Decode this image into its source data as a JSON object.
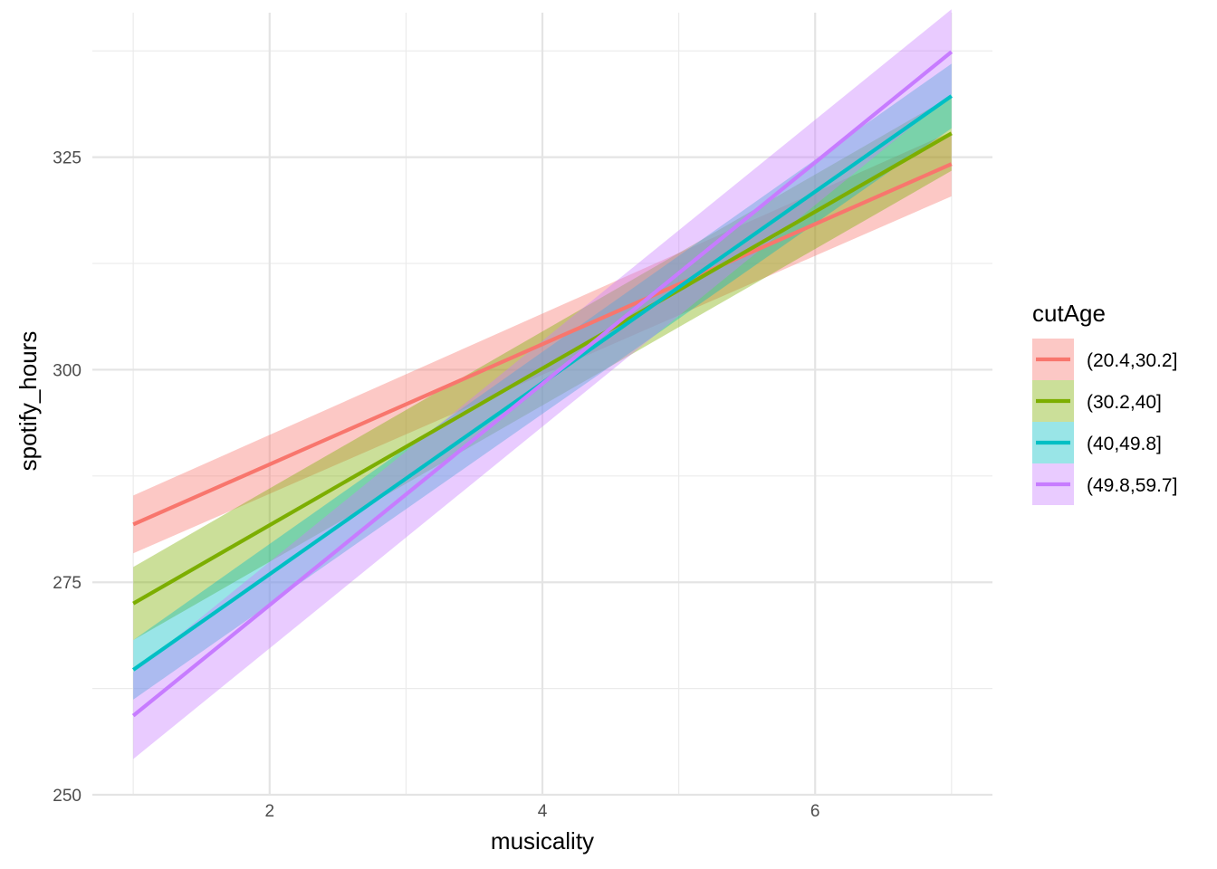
{
  "chart_data": {
    "type": "line",
    "xlabel": "musicality",
    "ylabel": "spotify_hours",
    "xlim": [
      0.7,
      7.3
    ],
    "ylim": [
      250,
      342
    ],
    "x_ticks": [
      2,
      4,
      6
    ],
    "x_minor": [
      1,
      3,
      5,
      7
    ],
    "y_ticks": [
      250,
      275,
      300,
      325
    ],
    "y_minor": [
      262.5,
      287.5,
      312.5,
      337.5
    ],
    "grid": true,
    "legend": {
      "title": "cutAge",
      "position": "right"
    },
    "series": [
      {
        "name": "(20.4,30.2]",
        "color": "#F8766D",
        "x": [
          1,
          7
        ],
        "y": [
          281.8,
          324.2
        ],
        "lower": [
          278.4,
          320.4
        ],
        "upper": [
          285.2,
          328.0
        ]
      },
      {
        "name": "(30.2,40]",
        "color": "#7CAE00",
        "x": [
          1,
          7
        ],
        "y": [
          272.5,
          327.8
        ],
        "lower": [
          268.2,
          323.4
        ],
        "upper": [
          276.8,
          332.2
        ]
      },
      {
        "name": "(40,49.8]",
        "color": "#00BFC4",
        "x": [
          1,
          7
        ],
        "y": [
          264.7,
          332.2
        ],
        "lower": [
          261.2,
          328.4
        ],
        "upper": [
          268.2,
          336.0
        ]
      },
      {
        "name": "(49.8,59.7]",
        "color": "#C77CFF",
        "x": [
          1,
          7
        ],
        "y": [
          259.3,
          337.4
        ],
        "lower": [
          254.2,
          332.4
        ],
        "upper": [
          264.4,
          342.4
        ]
      }
    ]
  }
}
